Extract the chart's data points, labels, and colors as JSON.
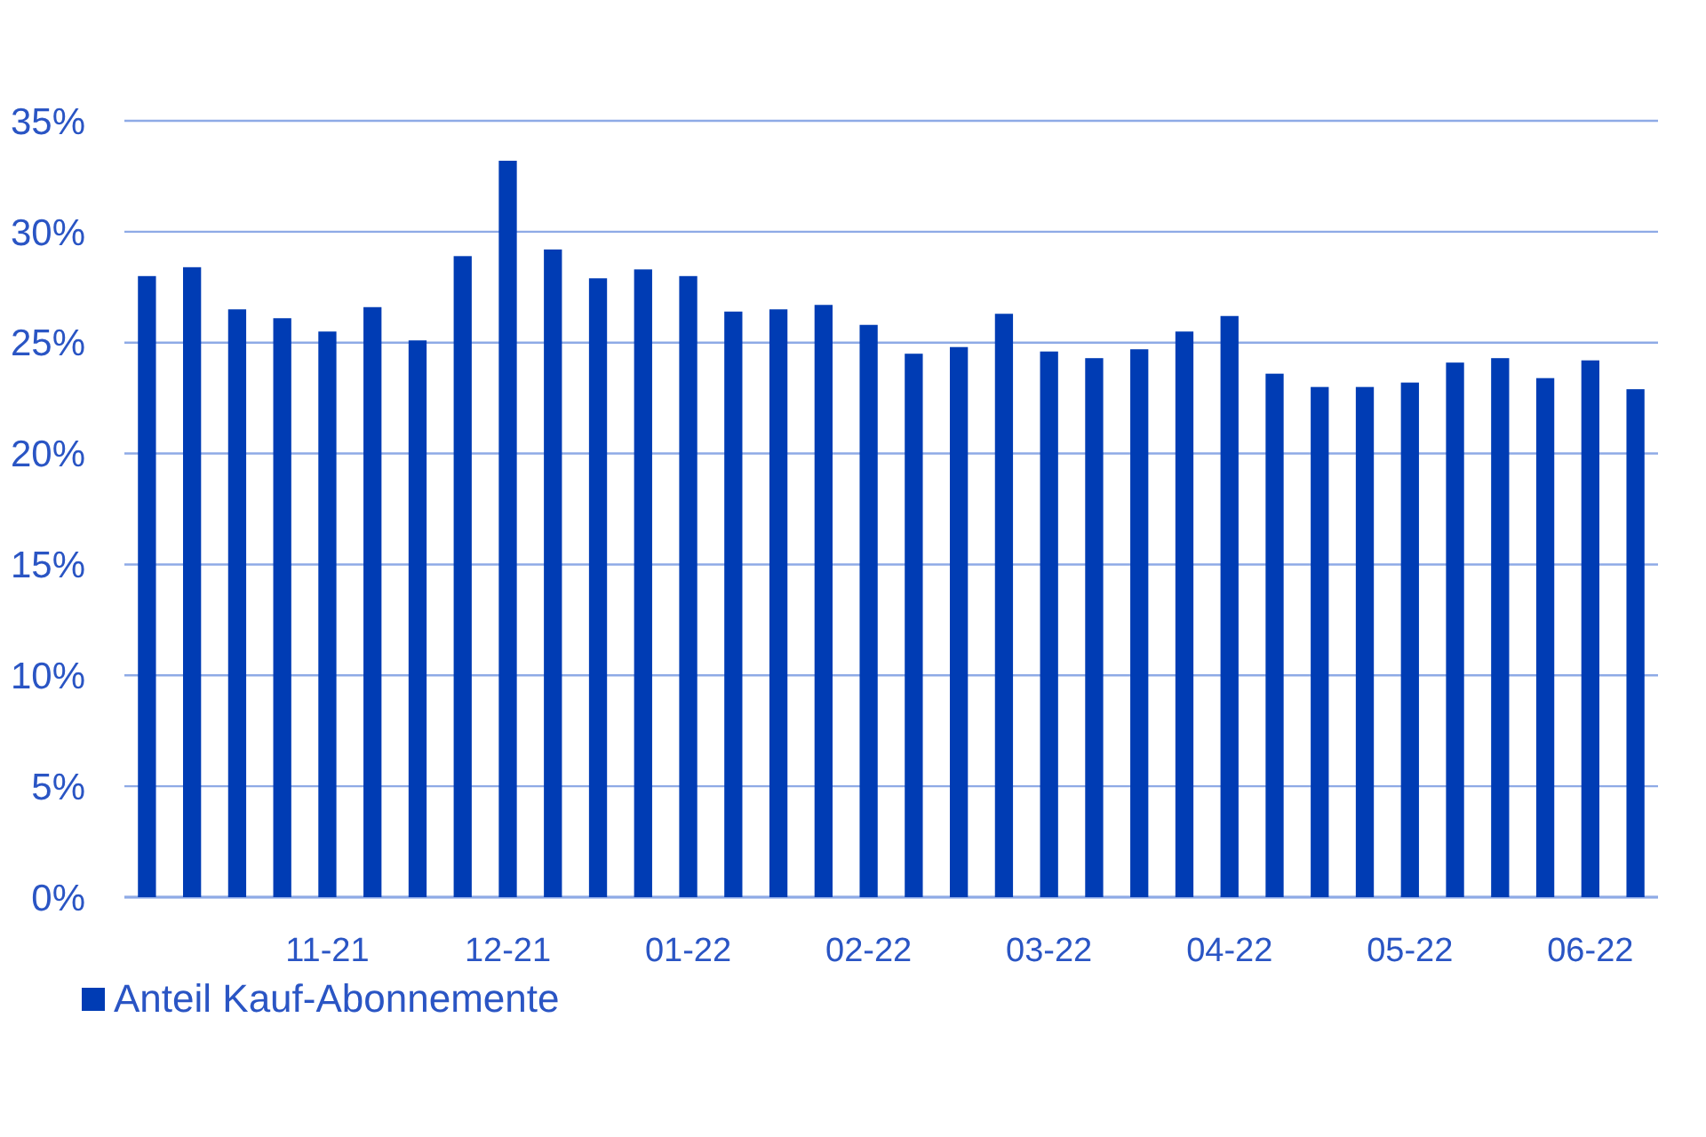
{
  "chart_data": {
    "type": "bar",
    "categories": [
      null,
      null,
      null,
      null,
      "11-21",
      null,
      null,
      null,
      "12-21",
      null,
      null,
      null,
      "01-22",
      null,
      null,
      null,
      "02-22",
      null,
      null,
      null,
      "03-22",
      null,
      null,
      null,
      "04-22",
      null,
      null,
      null,
      "05-22",
      null,
      null,
      null,
      "06-22",
      null
    ],
    "series": [
      {
        "name": "Anteil Kauf-Abonnemente",
        "color": "#003cb4",
        "values": [
          28.0,
          28.4,
          26.5,
          26.1,
          25.5,
          26.6,
          25.1,
          28.9,
          33.2,
          29.2,
          27.9,
          28.3,
          28.0,
          26.4,
          26.5,
          26.7,
          25.8,
          24.5,
          24.8,
          26.3,
          24.6,
          24.3,
          24.7,
          25.5,
          26.2,
          23.6,
          23.0,
          23.0,
          23.2,
          24.1,
          24.3,
          23.4,
          24.2,
          22.9
        ]
      }
    ],
    "ylim": [
      0,
      35
    ],
    "yticks": [
      {
        "value": 0,
        "label": "0%"
      },
      {
        "value": 5,
        "label": "5%"
      },
      {
        "value": 10,
        "label": "10%"
      },
      {
        "value": 15,
        "label": "15%"
      },
      {
        "value": 20,
        "label": "20%"
      },
      {
        "value": 25,
        "label": "25%"
      },
      {
        "value": 30,
        "label": "30%"
      },
      {
        "value": 35,
        "label": "35%"
      }
    ],
    "grid": "y",
    "legend": "bottom left"
  }
}
